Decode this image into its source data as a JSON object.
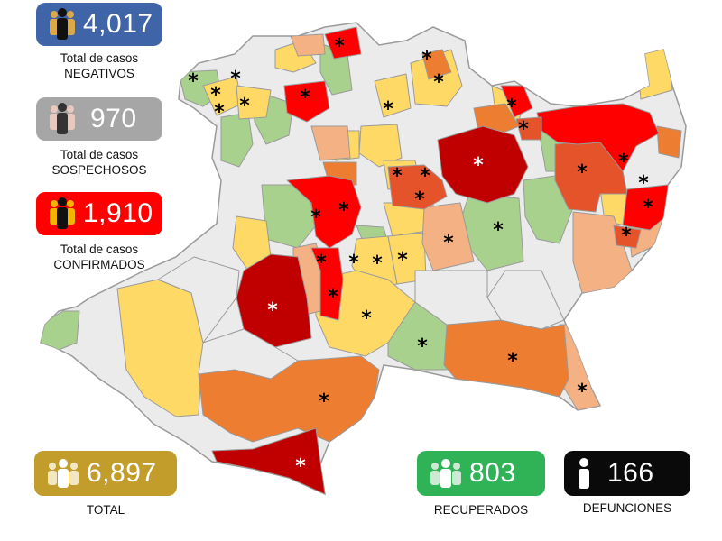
{
  "colors": {
    "sin_casos": "#ebebeb",
    "verde": "#a9d18e",
    "amarillo": "#ffd966",
    "naranja_claro": "#f4b183",
    "naranja": "#ed7d31",
    "naranja_oscuro": "#e4532a",
    "rojo": "#ff0000",
    "rojo_oscuro": "#c00000",
    "borde": "#9a9a9a"
  },
  "stats": {
    "negativos": {
      "value": "4,017",
      "line1": "Total de casos",
      "line2": "NEGATIVOS",
      "color": "#3f64a8",
      "icon": "people-icon"
    },
    "sospechosos": {
      "value": "970",
      "line1": "Total de casos",
      "line2": "SOSPECHOSOS",
      "color": "#a6a6a6",
      "icon": "people-icon"
    },
    "confirmados": {
      "value": "1,910",
      "line1": "Total de casos",
      "line2": "CONFIRMADOS",
      "color": "#ff0000",
      "icon": "people-icon"
    },
    "total": {
      "value": "6,897",
      "label": "TOTAL",
      "color": "#c29d2c",
      "icon": "group-icon"
    },
    "recuperados": {
      "value": "803",
      "label": "RECUPERADOS",
      "color": "#2fb356",
      "icon": "group-icon"
    },
    "defunciones": {
      "value": "166",
      "label": "DEFUNCIONES",
      "color": "#0a0a0a",
      "icon": "person-icon"
    }
  },
  "marker_symbol": "*"
}
